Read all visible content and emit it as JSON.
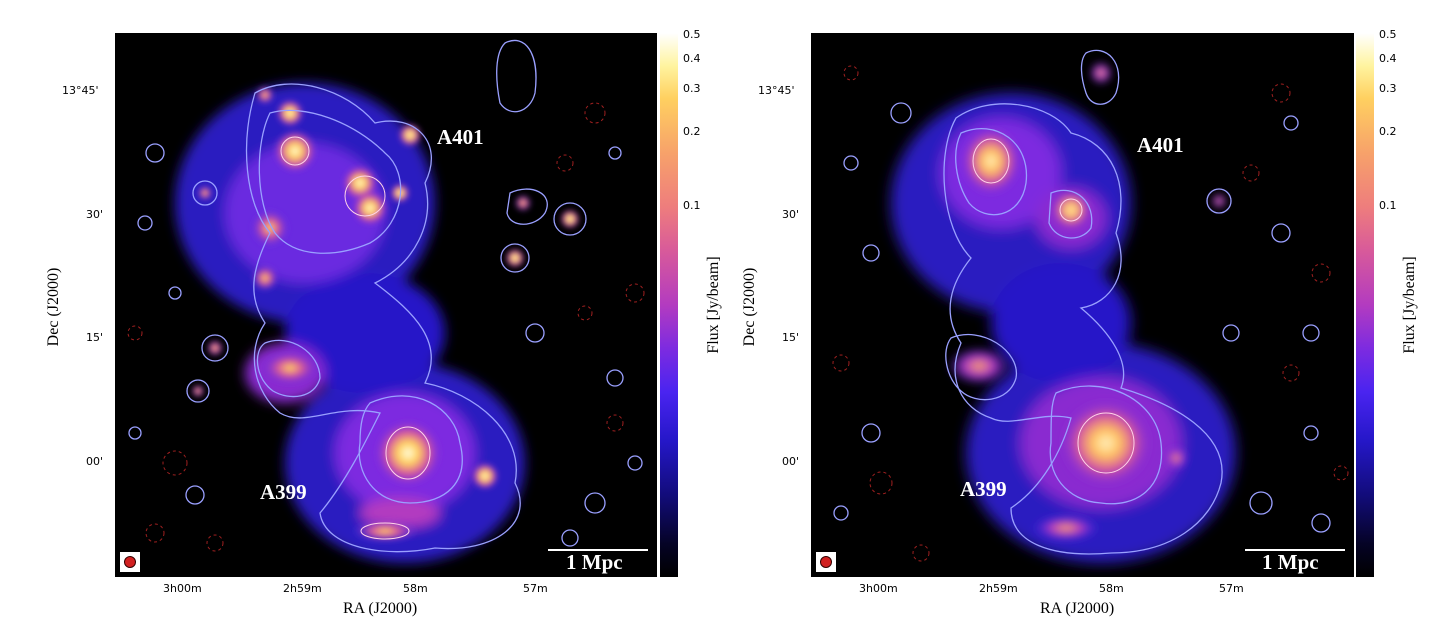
{
  "left_panel": {
    "x_axis_label": "RA (J2000)",
    "y_axis_label": "Dec (J2000)",
    "ra_ticks": [
      "3h00m",
      "2h59m",
      "58m",
      "57m"
    ],
    "dec_ticks": [
      "13°45'",
      "30'",
      "15'",
      "00'"
    ],
    "cluster_labels": [
      "A401",
      "A399"
    ],
    "scale_bar_label": "1 Mpc",
    "colorbar": {
      "label": "Flux [Jy/beam]",
      "ticks": [
        "0.5",
        "0.4",
        "0.3",
        "0.2",
        "0.1"
      ]
    }
  },
  "right_panel": {
    "x_axis_label": "RA (J2000)",
    "y_axis_label": "Dec (J2000)",
    "ra_ticks": [
      "3h00m",
      "2h59m",
      "58m",
      "57m"
    ],
    "dec_ticks": [
      "13°45'",
      "30'",
      "15'",
      "00'"
    ],
    "cluster_labels": [
      "A401",
      "A399"
    ],
    "scale_bar_label": "1 Mpc",
    "colorbar": {
      "label": "Flux [Jy/beam]",
      "ticks": [
        "0.5",
        "0.4",
        "0.3",
        "0.2",
        "0.1"
      ]
    }
  },
  "colormap": {
    "colors": [
      "#000000",
      "#120c7a",
      "#4a24f0",
      "#b33bc0",
      "#ee7d7d",
      "#ffd060",
      "#ffffff"
    ],
    "contour_color": "#9aa0ff",
    "negative_contour_color": "#a02020",
    "beam_color": "#d12020"
  }
}
